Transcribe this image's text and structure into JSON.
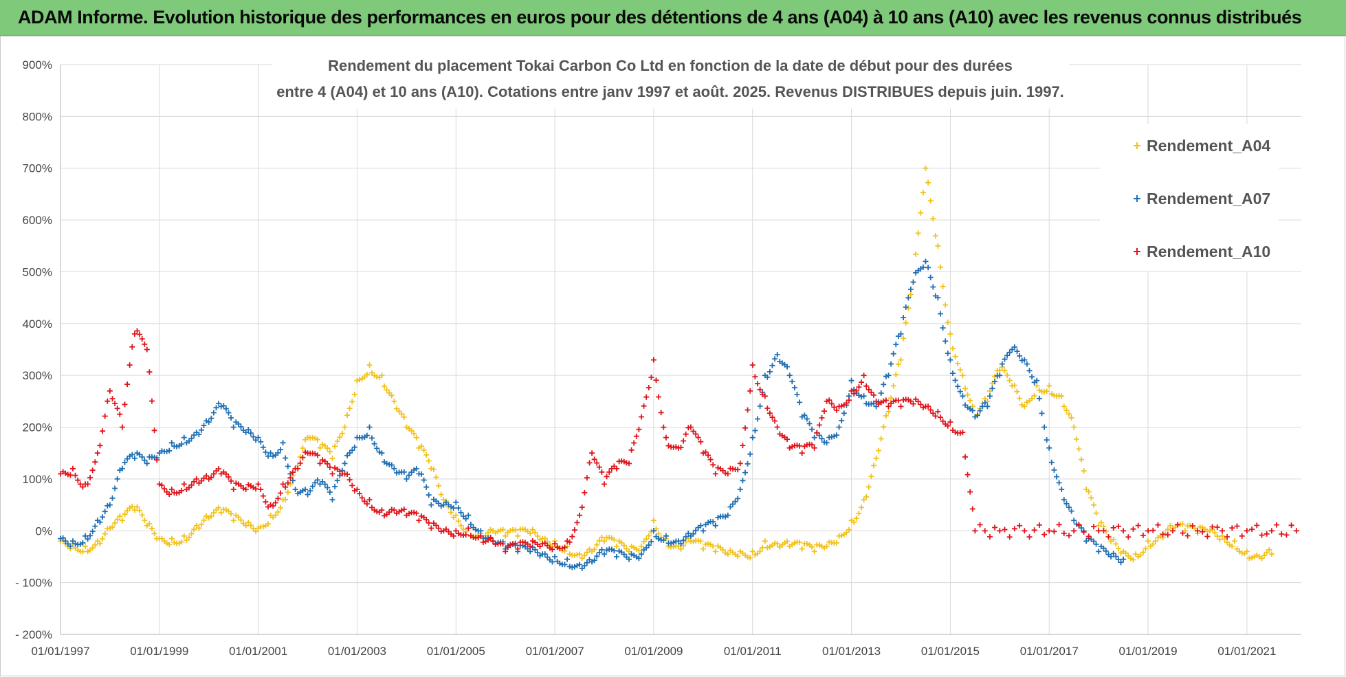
{
  "header": {
    "banner": "ADAM Informe. Evolution historique des performances en euros pour des détentions de 4 ans (A04) à 10 ans (A10) avec les revenus connus distribués"
  },
  "chart_data": {
    "type": "scatter",
    "title_lines": [
      "Rendement du placement Tokai Carbon Co Ltd en fonction de la date de début pour des durées",
      "entre 4 (A04) et 10 ans (A10).  Cotations entre janv 1997 et août. 2025. Revenus DISTRIBUES depuis juin. 1997."
    ],
    "y_ticks": [
      "900%",
      "800%",
      "700%",
      "600%",
      "500%",
      "400%",
      "300%",
      "200%",
      "100%",
      "0%",
      "- 100%",
      "- 200%"
    ],
    "x_ticks": [
      "01/01/1997",
      "01/01/1999",
      "01/01/2001",
      "01/01/2003",
      "01/01/2005",
      "01/01/2007",
      "01/01/2009",
      "01/01/2011",
      "01/01/2013",
      "01/01/2015",
      "01/01/2017",
      "01/01/2019",
      "01/01/2021"
    ],
    "xlim": [
      1997.0,
      2022.1
    ],
    "ylim": [
      -200,
      900
    ],
    "grid": true,
    "legend_position": "top-right",
    "series": [
      {
        "name": "Rendement_A04",
        "color": "#f2c21b",
        "points": [
          [
            1997.0,
            -20
          ],
          [
            1997.25,
            -25
          ],
          [
            1997.5,
            -30
          ],
          [
            1997.75,
            -20
          ],
          [
            1998.0,
            5
          ],
          [
            1998.25,
            20
          ],
          [
            1998.5,
            40
          ],
          [
            1998.75,
            10
          ],
          [
            1999.0,
            -15
          ],
          [
            1999.25,
            -15
          ],
          [
            1999.5,
            -10
          ],
          [
            1999.75,
            10
          ],
          [
            2000.0,
            25
          ],
          [
            2000.25,
            35
          ],
          [
            2000.5,
            20
          ],
          [
            2000.75,
            10
          ],
          [
            2001.0,
            5
          ],
          [
            2001.25,
            30
          ],
          [
            2001.5,
            60
          ],
          [
            2001.75,
            120
          ],
          [
            2002.0,
            180
          ],
          [
            2002.25,
            160
          ],
          [
            2002.5,
            140
          ],
          [
            2002.75,
            200
          ],
          [
            2003.0,
            290
          ],
          [
            2003.25,
            320
          ],
          [
            2003.5,
            300
          ],
          [
            2003.75,
            250
          ],
          [
            2004.0,
            200
          ],
          [
            2004.25,
            160
          ],
          [
            2004.5,
            120
          ],
          [
            2004.75,
            60
          ],
          [
            2005.0,
            30
          ],
          [
            2005.25,
            5
          ],
          [
            2005.5,
            -5
          ],
          [
            2005.75,
            0
          ],
          [
            2006.0,
            -10
          ],
          [
            2006.25,
            -10
          ],
          [
            2006.5,
            -5
          ],
          [
            2006.75,
            -15
          ],
          [
            2007.0,
            -20
          ],
          [
            2007.25,
            -30
          ],
          [
            2007.5,
            -45
          ],
          [
            2007.75,
            -40
          ],
          [
            2008.0,
            -20
          ],
          [
            2008.25,
            -30
          ],
          [
            2008.5,
            -40
          ],
          [
            2008.75,
            -30
          ],
          [
            2009.0,
            20
          ],
          [
            2009.25,
            -15
          ],
          [
            2009.5,
            -30
          ],
          [
            2009.75,
            -20
          ],
          [
            2010.0,
            -35
          ],
          [
            2010.25,
            -40
          ],
          [
            2010.5,
            -45
          ],
          [
            2010.75,
            -40
          ],
          [
            2011.0,
            -40
          ],
          [
            2011.25,
            -20
          ],
          [
            2011.5,
            -25
          ],
          [
            2011.75,
            -30
          ],
          [
            2012.0,
            -35
          ],
          [
            2012.25,
            -40
          ],
          [
            2012.5,
            -30
          ],
          [
            2012.75,
            -10
          ],
          [
            2013.0,
            20
          ],
          [
            2013.25,
            60
          ],
          [
            2013.5,
            140
          ],
          [
            2013.75,
            230
          ],
          [
            2014.0,
            330
          ],
          [
            2014.25,
            480
          ],
          [
            2014.5,
            700
          ],
          [
            2014.75,
            550
          ],
          [
            2015.0,
            380
          ],
          [
            2015.25,
            300
          ],
          [
            2015.5,
            220
          ],
          [
            2015.75,
            250
          ],
          [
            2016.0,
            310
          ],
          [
            2016.25,
            280
          ],
          [
            2016.5,
            240
          ],
          [
            2016.75,
            280
          ],
          [
            2017.0,
            280
          ],
          [
            2017.25,
            260
          ],
          [
            2017.5,
            200
          ],
          [
            2017.75,
            80
          ],
          [
            2018.0,
            10
          ],
          [
            2018.25,
            -20
          ],
          [
            2018.5,
            -40
          ],
          [
            2018.75,
            -45
          ],
          [
            2019.0,
            -20
          ],
          [
            2019.25,
            -10
          ],
          [
            2019.5,
            5
          ],
          [
            2019.75,
            0
          ],
          [
            2020.0,
            -5
          ],
          [
            2020.25,
            0
          ],
          [
            2020.5,
            -10
          ],
          [
            2020.75,
            -20
          ],
          [
            2021.0,
            -40
          ],
          [
            2021.25,
            -50
          ],
          [
            2021.5,
            -45
          ]
        ]
      },
      {
        "name": "Rendement_A07",
        "color": "#1f6fb4",
        "points": [
          [
            1997.0,
            -15
          ],
          [
            1997.25,
            -20
          ],
          [
            1997.5,
            -10
          ],
          [
            1997.75,
            20
          ],
          [
            1998.0,
            50
          ],
          [
            1998.25,
            120
          ],
          [
            1998.5,
            140
          ],
          [
            1998.75,
            130
          ],
          [
            1999.0,
            150
          ],
          [
            1999.25,
            170
          ],
          [
            1999.5,
            180
          ],
          [
            1999.75,
            190
          ],
          [
            2000.0,
            210
          ],
          [
            2000.25,
            240
          ],
          [
            2000.5,
            200
          ],
          [
            2000.75,
            190
          ],
          [
            2001.0,
            180
          ],
          [
            2001.25,
            150
          ],
          [
            2001.5,
            170
          ],
          [
            2001.75,
            80
          ],
          [
            2002.0,
            70
          ],
          [
            2002.25,
            90
          ],
          [
            2002.5,
            60
          ],
          [
            2002.75,
            130
          ],
          [
            2003.0,
            180
          ],
          [
            2003.25,
            200
          ],
          [
            2003.5,
            150
          ],
          [
            2003.75,
            120
          ],
          [
            2004.0,
            100
          ],
          [
            2004.25,
            110
          ],
          [
            2004.5,
            50
          ],
          [
            2004.75,
            50
          ],
          [
            2005.0,
            55
          ],
          [
            2005.25,
            30
          ],
          [
            2005.5,
            0
          ],
          [
            2005.75,
            -20
          ],
          [
            2006.0,
            -35
          ],
          [
            2006.25,
            -40
          ],
          [
            2006.5,
            -40
          ],
          [
            2006.75,
            -45
          ],
          [
            2007.0,
            -50
          ],
          [
            2007.25,
            -55
          ],
          [
            2007.5,
            -65
          ],
          [
            2007.75,
            -60
          ],
          [
            2008.0,
            -45
          ],
          [
            2008.25,
            -50
          ],
          [
            2008.5,
            -55
          ],
          [
            2008.75,
            -45
          ],
          [
            2009.0,
            0
          ],
          [
            2009.25,
            -10
          ],
          [
            2009.5,
            -20
          ],
          [
            2009.75,
            -10
          ],
          [
            2010.0,
            0
          ],
          [
            2010.25,
            10
          ],
          [
            2010.5,
            30
          ],
          [
            2010.75,
            80
          ],
          [
            2011.0,
            180
          ],
          [
            2011.25,
            300
          ],
          [
            2011.5,
            340
          ],
          [
            2011.75,
            300
          ],
          [
            2012.0,
            220
          ],
          [
            2012.25,
            180
          ],
          [
            2012.5,
            170
          ],
          [
            2012.75,
            200
          ],
          [
            2013.0,
            290
          ],
          [
            2013.25,
            260
          ],
          [
            2013.5,
            240
          ],
          [
            2013.75,
            300
          ],
          [
            2014.0,
            380
          ],
          [
            2014.25,
            480
          ],
          [
            2014.5,
            520
          ],
          [
            2014.75,
            450
          ],
          [
            2015.0,
            330
          ],
          [
            2015.25,
            260
          ],
          [
            2015.5,
            220
          ],
          [
            2015.75,
            240
          ],
          [
            2016.0,
            300
          ],
          [
            2016.25,
            350
          ],
          [
            2016.5,
            330
          ],
          [
            2016.75,
            290
          ],
          [
            2017.0,
            160
          ],
          [
            2017.25,
            80
          ],
          [
            2017.5,
            20
          ],
          [
            2017.75,
            -20
          ],
          [
            2018.0,
            -40
          ],
          [
            2018.25,
            -50
          ],
          [
            2018.5,
            -55
          ]
        ]
      },
      {
        "name": "Rendement_A10",
        "color": "#e0141b",
        "points": [
          [
            1997.0,
            110
          ],
          [
            1997.25,
            120
          ],
          [
            1997.5,
            90
          ],
          [
            1997.75,
            150
          ],
          [
            1998.0,
            270
          ],
          [
            1998.25,
            200
          ],
          [
            1998.5,
            380
          ],
          [
            1998.75,
            350
          ],
          [
            1999.0,
            90
          ],
          [
            1999.25,
            80
          ],
          [
            1999.5,
            90
          ],
          [
            1999.75,
            100
          ],
          [
            2000.0,
            100
          ],
          [
            2000.25,
            110
          ],
          [
            2000.5,
            80
          ],
          [
            2000.75,
            80
          ],
          [
            2001.0,
            90
          ],
          [
            2001.25,
            50
          ],
          [
            2001.5,
            90
          ],
          [
            2001.75,
            120
          ],
          [
            2002.0,
            150
          ],
          [
            2002.25,
            130
          ],
          [
            2002.5,
            110
          ],
          [
            2002.75,
            110
          ],
          [
            2003.0,
            80
          ],
          [
            2003.25,
            60
          ],
          [
            2003.5,
            40
          ],
          [
            2003.75,
            40
          ],
          [
            2004.0,
            30
          ],
          [
            2004.25,
            20
          ],
          [
            2004.5,
            5
          ],
          [
            2004.75,
            0
          ],
          [
            2005.0,
            0
          ],
          [
            2005.25,
            5
          ],
          [
            2005.5,
            -10
          ],
          [
            2005.75,
            -20
          ],
          [
            2006.0,
            -40
          ],
          [
            2006.25,
            -35
          ],
          [
            2006.5,
            -30
          ],
          [
            2006.75,
            -25
          ],
          [
            2007.0,
            -25
          ],
          [
            2007.25,
            -20
          ],
          [
            2007.5,
            30
          ],
          [
            2007.75,
            150
          ],
          [
            2008.0,
            90
          ],
          [
            2008.25,
            120
          ],
          [
            2008.5,
            130
          ],
          [
            2008.75,
            220
          ],
          [
            2009.0,
            330
          ],
          [
            2009.25,
            180
          ],
          [
            2009.5,
            160
          ],
          [
            2009.75,
            200
          ],
          [
            2010.0,
            150
          ],
          [
            2010.25,
            110
          ],
          [
            2010.5,
            110
          ],
          [
            2010.75,
            130
          ],
          [
            2011.0,
            320
          ],
          [
            2011.25,
            260
          ],
          [
            2011.5,
            200
          ],
          [
            2011.75,
            160
          ],
          [
            2012.0,
            150
          ],
          [
            2012.25,
            160
          ],
          [
            2012.5,
            250
          ],
          [
            2012.75,
            240
          ],
          [
            2013.0,
            270
          ],
          [
            2013.25,
            300
          ],
          [
            2013.5,
            250
          ],
          [
            2013.75,
            240
          ],
          [
            2014.0,
            240
          ],
          [
            2014.25,
            245
          ],
          [
            2014.5,
            240
          ],
          [
            2014.75,
            230
          ],
          [
            2015.0,
            210
          ],
          [
            2015.25,
            190
          ],
          [
            2015.5,
            0
          ],
          [
            2016.0,
            0
          ],
          [
            2016.5,
            0
          ],
          [
            2017.0,
            0
          ],
          [
            2017.5,
            0
          ],
          [
            2018.0,
            0
          ],
          [
            2018.5,
            0
          ],
          [
            2019.0,
            0
          ],
          [
            2019.5,
            0
          ],
          [
            2020.0,
            0
          ],
          [
            2020.5,
            0
          ],
          [
            2021.0,
            0
          ],
          [
            2021.5,
            0
          ],
          [
            2022.0,
            0
          ]
        ]
      }
    ]
  }
}
